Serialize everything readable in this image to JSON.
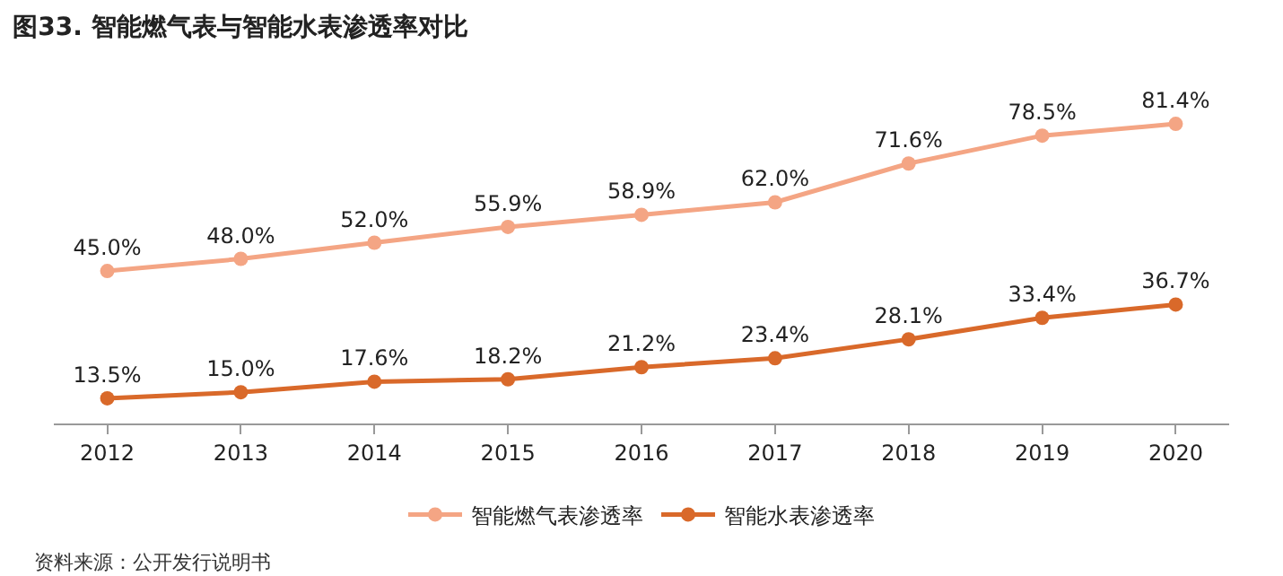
{
  "chart_data": {
    "type": "line",
    "title": "图33. 智能燃气表与智能水表渗透率对比",
    "categories": [
      "2012",
      "2013",
      "2014",
      "2015",
      "2016",
      "2017",
      "2018",
      "2019",
      "2020"
    ],
    "series": [
      {
        "name": "智能燃气表渗透率",
        "color": "#f4a584",
        "values": [
          45.0,
          48.0,
          52.0,
          55.9,
          58.9,
          62.0,
          71.6,
          78.5,
          81.4
        ],
        "value_labels": [
          "45.0%",
          "48.0%",
          "52.0%",
          "55.9%",
          "58.9%",
          "62.0%",
          "71.6%",
          "78.5%",
          "81.4%"
        ]
      },
      {
        "name": "智能水表渗透率",
        "color": "#d9692a",
        "values": [
          13.5,
          15.0,
          17.6,
          18.2,
          21.2,
          23.4,
          28.1,
          33.4,
          36.7
        ],
        "value_labels": [
          "13.5%",
          "15.0%",
          "17.6%",
          "18.2%",
          "21.2%",
          "23.4%",
          "28.1%",
          "33.4%",
          "36.7%"
        ]
      }
    ],
    "marker": "circle",
    "line_style": "solid",
    "legend": "bottom",
    "tick_labels": "x",
    "annotations": [
      "资料来源：公开发行说明书"
    ]
  }
}
